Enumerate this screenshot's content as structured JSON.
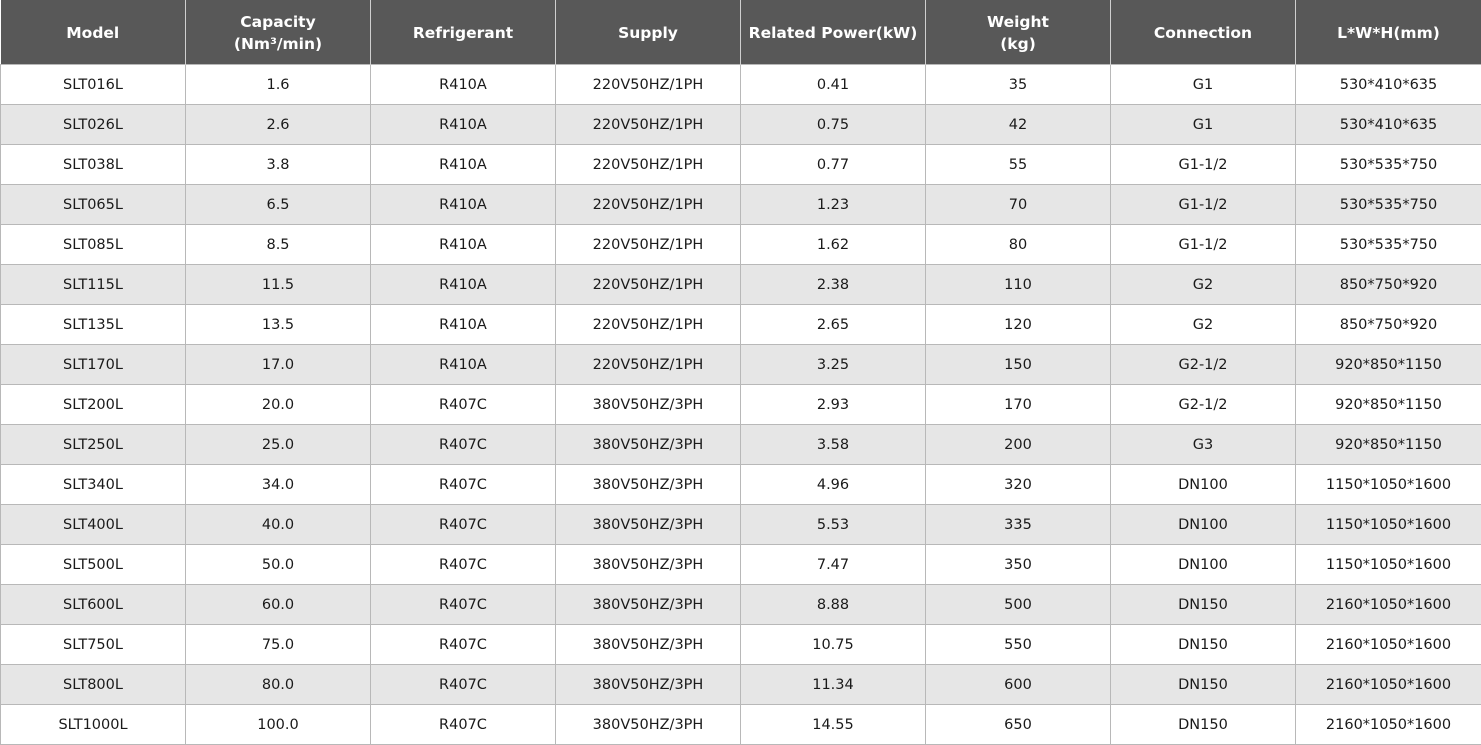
{
  "table": {
    "headers": [
      [
        "Model"
      ],
      [
        "Capacity",
        "(Nm³/min)"
      ],
      [
        "Refrigerant"
      ],
      [
        "Supply"
      ],
      [
        "Related Power(kW)"
      ],
      [
        "Weight",
        "(kg)"
      ],
      [
        "Connection"
      ],
      [
        "L*W*H(mm)"
      ]
    ],
    "rows": [
      [
        "SLT016L",
        "1.6",
        "R410A",
        "220V50HZ/1PH",
        "0.41",
        "35",
        "G1",
        "530*410*635"
      ],
      [
        "SLT026L",
        "2.6",
        "R410A",
        "220V50HZ/1PH",
        "0.75",
        "42",
        "G1",
        "530*410*635"
      ],
      [
        "SLT038L",
        "3.8",
        "R410A",
        "220V50HZ/1PH",
        "0.77",
        "55",
        "G1-1/2",
        "530*535*750"
      ],
      [
        "SLT065L",
        "6.5",
        "R410A",
        "220V50HZ/1PH",
        "1.23",
        "70",
        "G1-1/2",
        "530*535*750"
      ],
      [
        "SLT085L",
        "8.5",
        "R410A",
        "220V50HZ/1PH",
        "1.62",
        "80",
        "G1-1/2",
        "530*535*750"
      ],
      [
        "SLT115L",
        "11.5",
        "R410A",
        "220V50HZ/1PH",
        "2.38",
        "110",
        "G2",
        "850*750*920"
      ],
      [
        "SLT135L",
        "13.5",
        "R410A",
        "220V50HZ/1PH",
        "2.65",
        "120",
        "G2",
        "850*750*920"
      ],
      [
        "SLT170L",
        "17.0",
        "R410A",
        "220V50HZ/1PH",
        "3.25",
        "150",
        "G2-1/2",
        "920*850*1150"
      ],
      [
        "SLT200L",
        "20.0",
        "R407C",
        "380V50HZ/3PH",
        "2.93",
        "170",
        "G2-1/2",
        "920*850*1150"
      ],
      [
        "SLT250L",
        "25.0",
        "R407C",
        "380V50HZ/3PH",
        "3.58",
        "200",
        "G3",
        "920*850*1150"
      ],
      [
        "SLT340L",
        "34.0",
        "R407C",
        "380V50HZ/3PH",
        "4.96",
        "320",
        "DN100",
        "1150*1050*1600"
      ],
      [
        "SLT400L",
        "40.0",
        "R407C",
        "380V50HZ/3PH",
        "5.53",
        "335",
        "DN100",
        "1150*1050*1600"
      ],
      [
        "SLT500L",
        "50.0",
        "R407C",
        "380V50HZ/3PH",
        "7.47",
        "350",
        "DN100",
        "1150*1050*1600"
      ],
      [
        "SLT600L",
        "60.0",
        "R407C",
        "380V50HZ/3PH",
        "8.88",
        "500",
        "DN150",
        "2160*1050*1600"
      ],
      [
        "SLT750L",
        "75.0",
        "R407C",
        "380V50HZ/3PH",
        "10.75",
        "550",
        "DN150",
        "2160*1050*1600"
      ],
      [
        "SLT800L",
        "80.0",
        "R407C",
        "380V50HZ/3PH",
        "11.34",
        "600",
        "DN150",
        "2160*1050*1600"
      ],
      [
        "SLT1000L",
        "100.0",
        "R407C",
        "380V50HZ/3PH",
        "14.55",
        "650",
        "DN150",
        "2160*1050*1600"
      ]
    ]
  },
  "colors": {
    "header_bg": "#585858",
    "header_text": "#ffffff",
    "row_alt_bg": "#e6e6e6",
    "row_bg": "#ffffff",
    "border": "#b8b8b8"
  }
}
